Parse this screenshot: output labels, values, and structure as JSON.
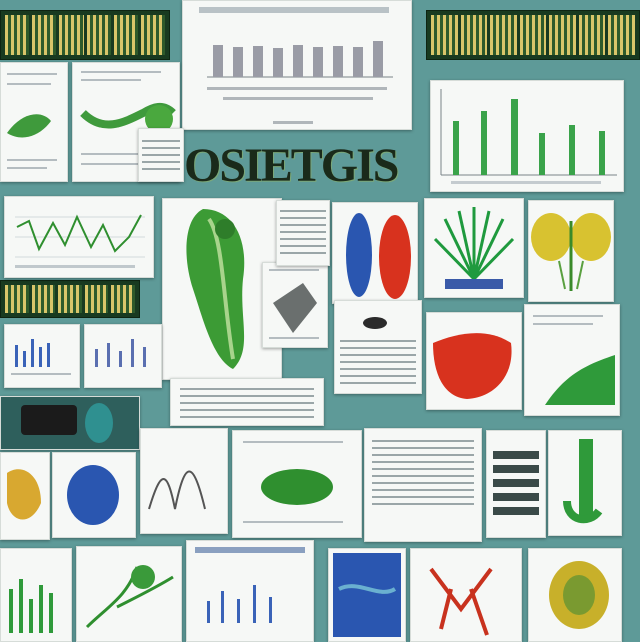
{
  "collage": {
    "title": "OSIETGIS"
  },
  "colors": {
    "background": "#5e9a98",
    "paper": "#f6f8f6",
    "accent_green": "#2f8f2f",
    "accent_red": "#d8321e",
    "accent_blue": "#2a56b0",
    "accent_yellow": "#d8c230"
  },
  "icons": [
    "leaf-icon",
    "flower-icon",
    "cell-icon",
    "tree-icon"
  ]
}
